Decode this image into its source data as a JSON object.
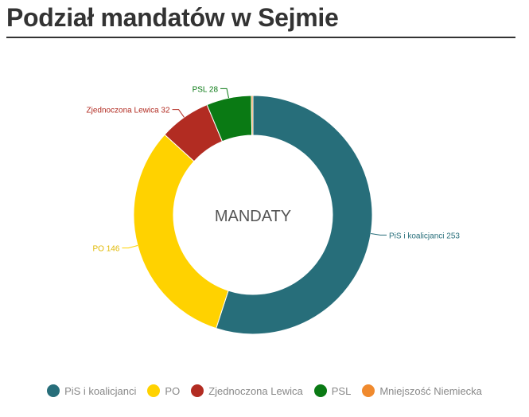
{
  "title": "Podział mandatów w Sejmie",
  "chart_data": {
    "type": "pie",
    "center_label": "MANDATY",
    "slices": [
      {
        "name": "PiS i koalicjanci",
        "value": 253,
        "color": "#276e7a",
        "label": "PiS i koalicjanci 253"
      },
      {
        "name": "PO",
        "value": 146,
        "color": "#ffd200",
        "label": "PO 146"
      },
      {
        "name": "Zjednoczona Lewica",
        "value": 32,
        "color": "#b22c22",
        "label": "Zjednoczona Lewica 32"
      },
      {
        "name": "PSL",
        "value": 28,
        "color": "#0a7a14",
        "label": "PSL 28"
      },
      {
        "name": "Mniejszość Niemiecka",
        "value": 1,
        "color": "#f08a2e",
        "label": ""
      }
    ],
    "legend_position": "bottom"
  }
}
